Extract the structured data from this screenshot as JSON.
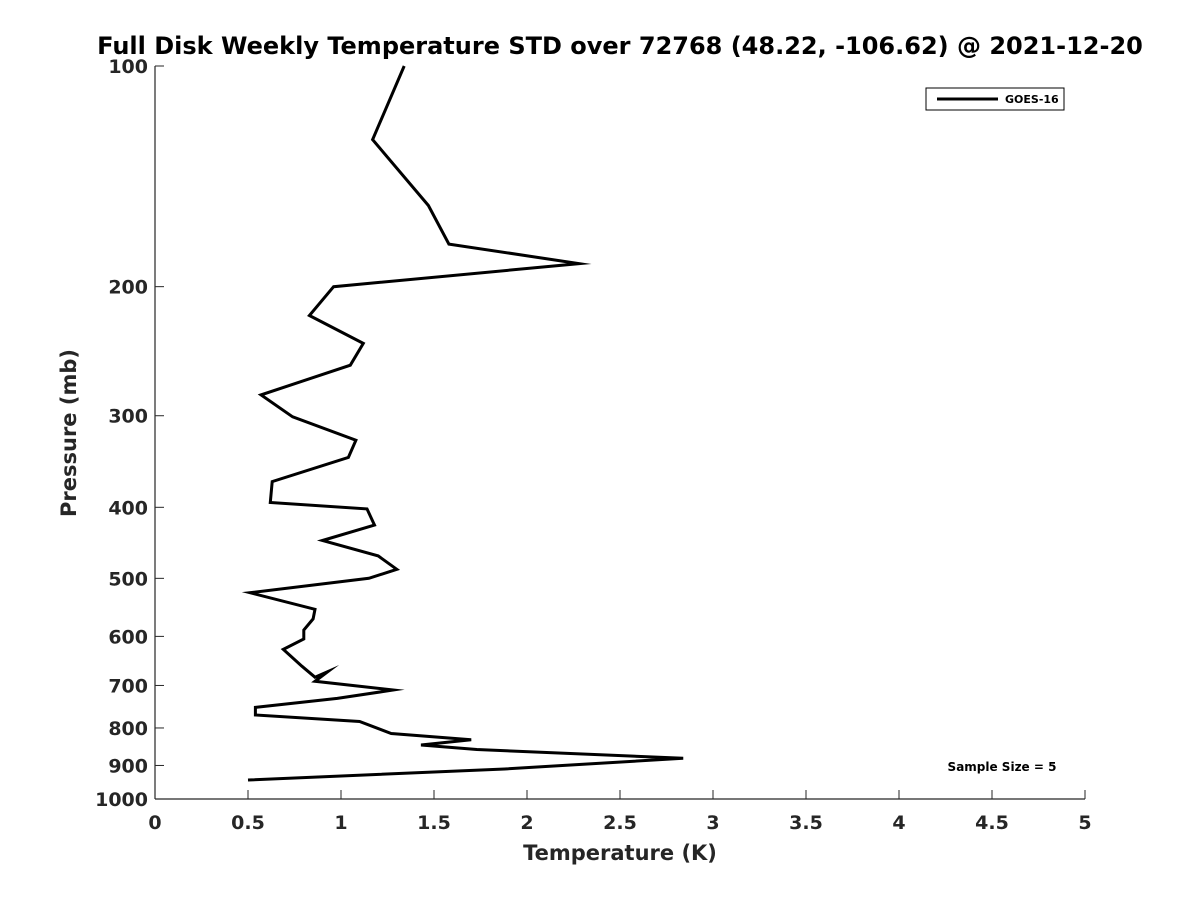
{
  "chart_data": {
    "type": "line",
    "title": "Full Disk Weekly Temperature STD over 72768 (48.22, -106.62) @ 2021-12-20",
    "xlabel": "Temperature (K)",
    "ylabel": "Pressure (mb)",
    "xlim": [
      0,
      5
    ],
    "ylim": [
      100,
      1000
    ],
    "y_scale": "log",
    "y_reversed": true,
    "x_ticks": [
      0,
      0.5,
      1,
      1.5,
      2,
      2.5,
      3,
      3.5,
      4,
      4.5,
      5
    ],
    "x_tick_labels": [
      "0",
      "0.5",
      "1",
      "1.5",
      "2",
      "2.5",
      "3",
      "3.5",
      "4",
      "4.5",
      "5"
    ],
    "y_ticks": [
      100,
      200,
      300,
      400,
      500,
      600,
      700,
      800,
      900,
      1000
    ],
    "y_tick_labels": [
      "100",
      "200",
      "300",
      "400",
      "500",
      "600",
      "700",
      "800",
      "900",
      "1000"
    ],
    "legend": {
      "position": "top-right",
      "entries": [
        "GOES-16"
      ]
    },
    "annotation": "Sample Size = 5",
    "series": [
      {
        "name": "GOES-16",
        "color": "#000000",
        "x": [
          1.34,
          1.17,
          1.47,
          1.58,
          2.28,
          0.96,
          0.83,
          1.12,
          1.05,
          0.57,
          0.74,
          1.08,
          1.04,
          0.63,
          0.62,
          1.14,
          1.18,
          0.9,
          1.2,
          1.3,
          1.15,
          0.51,
          0.86,
          0.85,
          0.8,
          0.8,
          0.69,
          0.79,
          0.86,
          0.93,
          0.86,
          1.28,
          0.98,
          0.54,
          0.54,
          1.1,
          1.27,
          1.7,
          1.43,
          1.73,
          2.84,
          2.19,
          1.88,
          0.5
        ],
        "y": [
          100,
          126,
          155,
          175,
          186,
          200,
          219,
          239,
          256,
          281,
          301,
          324,
          342,
          369,
          394,
          402,
          423,
          444,
          466,
          486,
          500,
          523,
          551,
          568,
          588,
          605,
          625,
          659,
          682,
          670,
          691,
          710,
          729,
          750,
          768,
          784,
          814,
          830,
          844,
          856,
          880,
          900,
          910,
          942
        ]
      }
    ]
  }
}
